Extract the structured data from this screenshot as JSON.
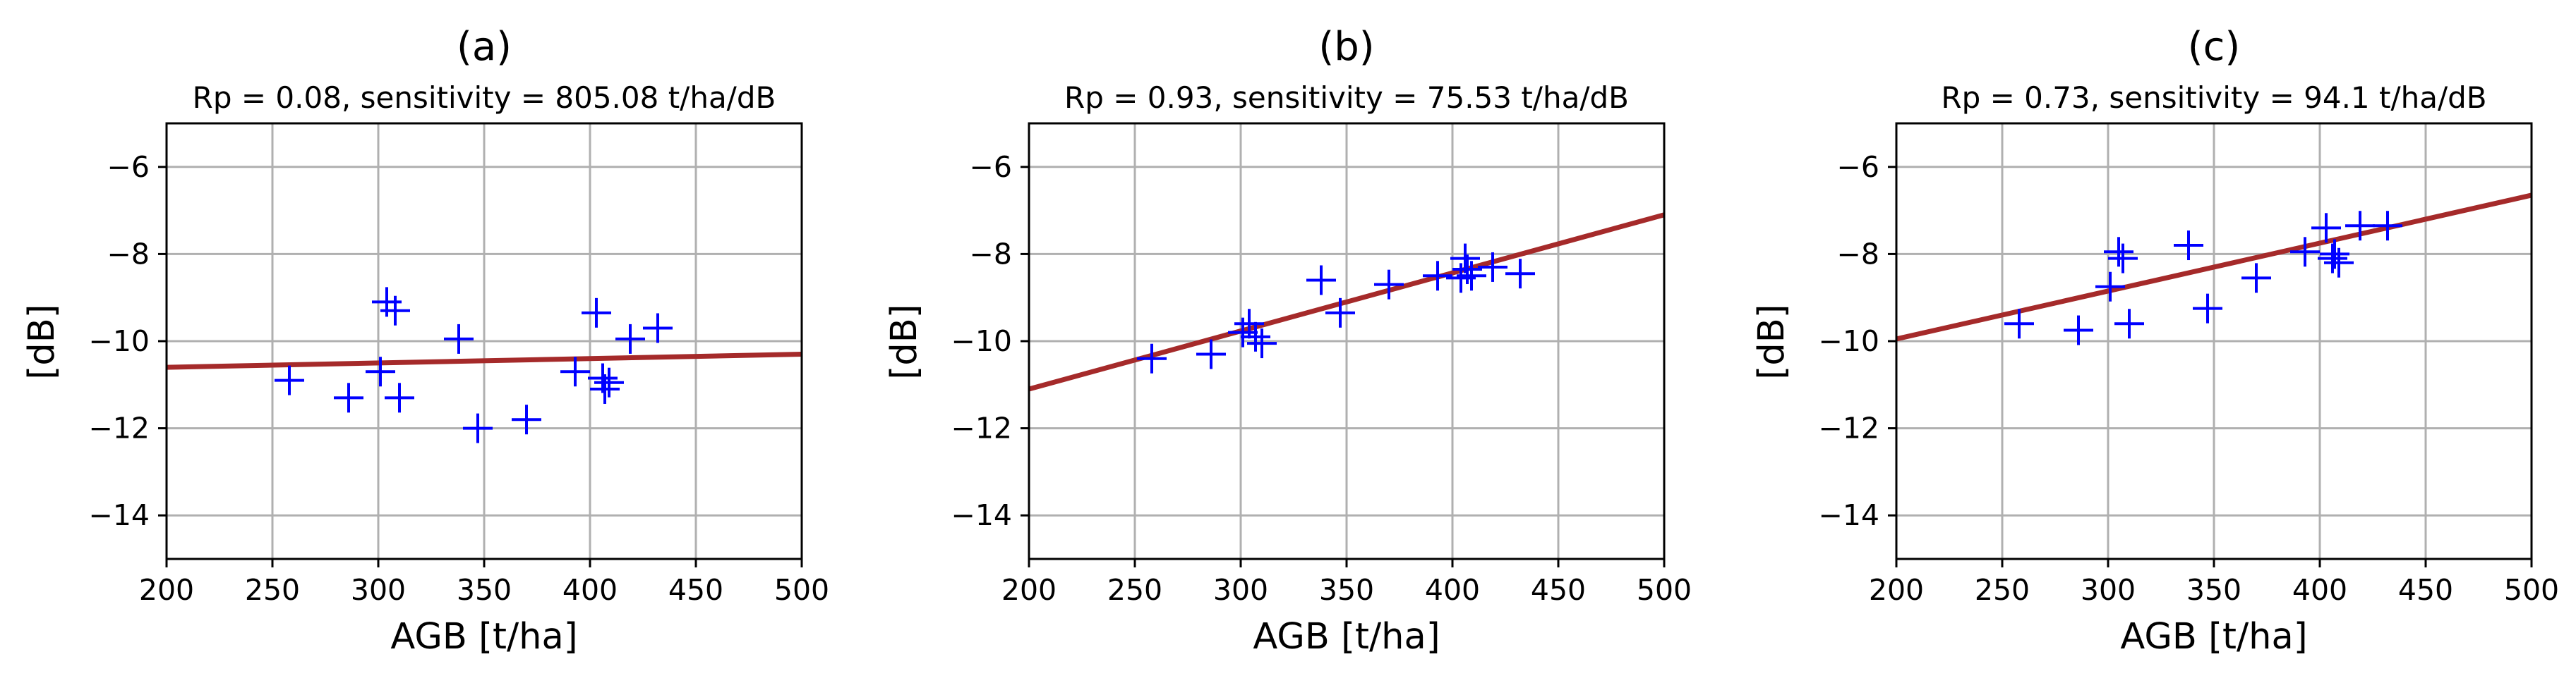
{
  "chart_data": [
    {
      "type": "scatter",
      "title": "(a)",
      "subtitle": "Rp = 0.08, sensitivity = 805.08 t/ha/dB",
      "xlabel": "AGB [t/ha]",
      "ylabel": "[dB]",
      "xlim": [
        200,
        500
      ],
      "ylim": [
        -15,
        -5
      ],
      "xticks": [
        200,
        250,
        300,
        350,
        400,
        450,
        500
      ],
      "xtick_labels": [
        "200",
        "250",
        "300",
        "350",
        "400",
        "450",
        "500"
      ],
      "yticks": [
        -6,
        -8,
        -10,
        -12,
        -14
      ],
      "ytick_labels": [
        "−6",
        "−8",
        "−10",
        "−12",
        "−14"
      ],
      "grid": true,
      "marker_color": "#0000ff",
      "fit_color": "#a52a2a",
      "points": [
        {
          "x": 258,
          "y": -10.9
        },
        {
          "x": 286,
          "y": -11.3
        },
        {
          "x": 301,
          "y": -10.7
        },
        {
          "x": 304,
          "y": -9.1
        },
        {
          "x": 308,
          "y": -9.3
        },
        {
          "x": 310,
          "y": -11.3
        },
        {
          "x": 338,
          "y": -9.95
        },
        {
          "x": 347,
          "y": -12.0
        },
        {
          "x": 370,
          "y": -11.8
        },
        {
          "x": 393,
          "y": -10.7
        },
        {
          "x": 403,
          "y": -9.35
        },
        {
          "x": 406,
          "y": -10.85
        },
        {
          "x": 407,
          "y": -11.1
        },
        {
          "x": 409,
          "y": -10.95
        },
        {
          "x": 419,
          "y": -9.95
        },
        {
          "x": 432,
          "y": -9.7
        }
      ],
      "fit": {
        "x": [
          200,
          500
        ],
        "y": [
          -10.6,
          -10.3
        ]
      }
    },
    {
      "type": "scatter",
      "title": "(b)",
      "subtitle": "Rp = 0.93, sensitivity = 75.53 t/ha/dB",
      "xlabel": "AGB [t/ha]",
      "ylabel": "[dB]",
      "xlim": [
        200,
        500
      ],
      "ylim": [
        -15,
        -5
      ],
      "xticks": [
        200,
        250,
        300,
        350,
        400,
        450,
        500
      ],
      "xtick_labels": [
        "200",
        "250",
        "300",
        "350",
        "400",
        "450",
        "500"
      ],
      "yticks": [
        -6,
        -8,
        -10,
        -12,
        -14
      ],
      "ytick_labels": [
        "−6",
        "−8",
        "−10",
        "−12",
        "−14"
      ],
      "grid": true,
      "marker_color": "#0000ff",
      "fit_color": "#a52a2a",
      "points": [
        {
          "x": 258,
          "y": -10.4
        },
        {
          "x": 286,
          "y": -10.3
        },
        {
          "x": 301,
          "y": -9.8
        },
        {
          "x": 304,
          "y": -9.6
        },
        {
          "x": 307,
          "y": -9.9
        },
        {
          "x": 310,
          "y": -10.05
        },
        {
          "x": 338,
          "y": -8.6
        },
        {
          "x": 347,
          "y": -9.35
        },
        {
          "x": 370,
          "y": -8.7
        },
        {
          "x": 393,
          "y": -8.5
        },
        {
          "x": 404,
          "y": -8.55
        },
        {
          "x": 406,
          "y": -8.1
        },
        {
          "x": 407,
          "y": -8.35
        },
        {
          "x": 409,
          "y": -8.5
        },
        {
          "x": 419,
          "y": -8.3
        },
        {
          "x": 432,
          "y": -8.45
        }
      ],
      "fit": {
        "x": [
          200,
          500
        ],
        "y": [
          -11.1,
          -7.1
        ]
      }
    },
    {
      "type": "scatter",
      "title": "(c)",
      "subtitle": "Rp = 0.73, sensitivity = 94.1 t/ha/dB",
      "xlabel": "AGB [t/ha]",
      "ylabel": "[dB]",
      "xlim": [
        200,
        500
      ],
      "ylim": [
        -15,
        -5
      ],
      "xticks": [
        200,
        250,
        300,
        350,
        400,
        450,
        500
      ],
      "xtick_labels": [
        "200",
        "250",
        "300",
        "350",
        "400",
        "450",
        "500"
      ],
      "yticks": [
        -6,
        -8,
        -10,
        -12,
        -14
      ],
      "ytick_labels": [
        "−6",
        "−8",
        "−10",
        "−12",
        "−14"
      ],
      "grid": true,
      "marker_color": "#0000ff",
      "fit_color": "#a52a2a",
      "points": [
        {
          "x": 258,
          "y": -9.6
        },
        {
          "x": 286,
          "y": -9.75
        },
        {
          "x": 301,
          "y": -8.75
        },
        {
          "x": 305,
          "y": -7.95
        },
        {
          "x": 307,
          "y": -8.1
        },
        {
          "x": 310,
          "y": -9.6
        },
        {
          "x": 338,
          "y": -7.8
        },
        {
          "x": 347,
          "y": -9.25
        },
        {
          "x": 370,
          "y": -8.55
        },
        {
          "x": 393,
          "y": -7.95
        },
        {
          "x": 403,
          "y": -7.4
        },
        {
          "x": 406,
          "y": -8.1
        },
        {
          "x": 407,
          "y": -8.0
        },
        {
          "x": 409,
          "y": -8.2
        },
        {
          "x": 419,
          "y": -7.35
        },
        {
          "x": 432,
          "y": -7.35
        }
      ],
      "fit": {
        "x": [
          200,
          500
        ],
        "y": [
          -9.95,
          -6.65
        ]
      }
    }
  ]
}
